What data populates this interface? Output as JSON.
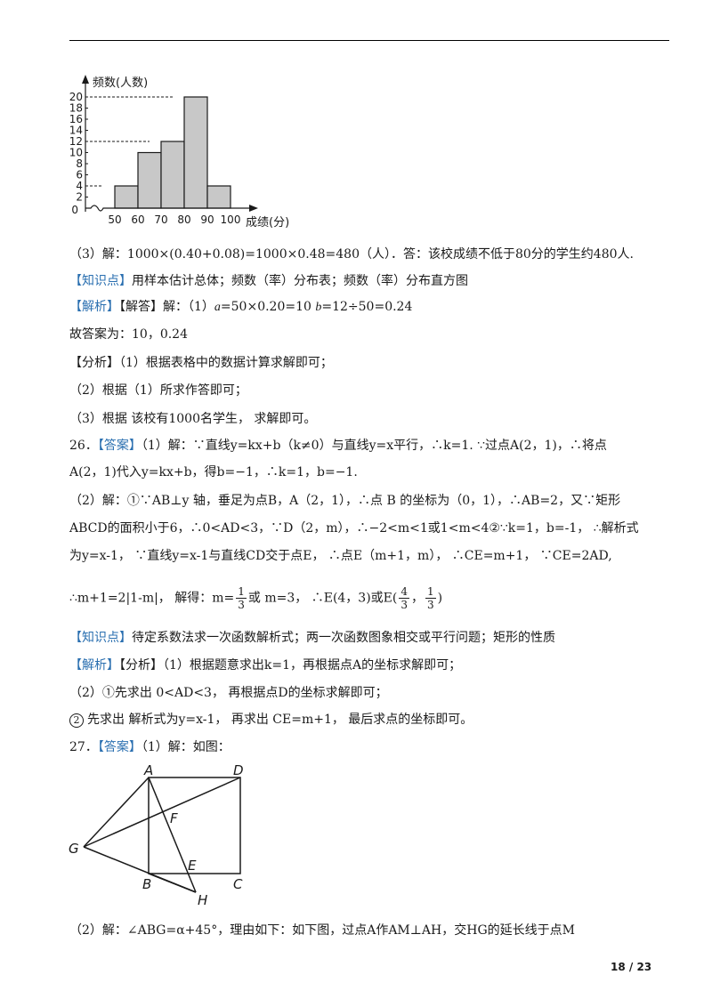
{
  "histogram": {
    "chart_data": {
      "type": "bar",
      "categories": [
        "50-60",
        "60-70",
        "70-80",
        "80-90",
        "90-100"
      ],
      "values": [
        4,
        10,
        12,
        20,
        4
      ],
      "x_ticks": [
        "50",
        "60",
        "70",
        "80",
        "90",
        "100"
      ],
      "y_ticks": [
        "20",
        "18",
        "16",
        "14",
        "12",
        "10",
        "8",
        "6",
        "4",
        "2"
      ],
      "origin": "0",
      "ylabel": "频数(人数)",
      "xlabel": "成绩(分)",
      "ylim": [
        0,
        20
      ],
      "dashed_at": [
        20,
        12,
        4
      ]
    }
  },
  "p25_3": "（3）解：1000×(0.40+0.08)=1000×0.48=480（人）．答：该校成绩不低于80分的学生约480人.",
  "kp25": {
    "tag": "【知识点】",
    "text": "用样本估计总体；频数（率）分布表；频数（率）分布直方图"
  },
  "jx25": {
    "tag": "【解析】",
    "text": "【解答】解：（1）",
    "a": "a",
    "mid": "=50×0.20=10 ",
    "b": "b",
    "end": "=12÷50=0.24"
  },
  "ans25": "故答案为：10，0.24",
  "fx25_1": "【分析】（1）根据表格中的数据计算求解即可；",
  "fx25_2": "（2）根据（1）所求作答即可；",
  "fx25_3": "（3）根据 该校有1000名学生， 求解即可。",
  "q26_l1": {
    "num": "26．",
    "tag": "【答案】",
    "text": "（1）解：∵直线y=kx+b（k≠0）与直线y=x平行，∴k=1. ∵过点A(2，1)，∴将点"
  },
  "q26_l2": "A(2，1)代入y=kx+b，得b=−1，∴k=1，b=−1.",
  "q26_l3": "（2）解：①∵AB⊥y 轴，垂足为点B，A（2，1），∴点 B 的坐标为（0，1），∴AB=2，又∵矩形",
  "q26_l4": "ABCD的面积小于6，∴0<AD<3，∵D（2，m），∴−2<m<1或1<m<4②∵k=1，b=-1， ∴解析式",
  "q26_l5": "为y=x-1， ∵直线y=x-1与直线CD交于点E， ∴点E（m+1，m）， ∴CE=m+1， ∵CE=2AD,",
  "q26_l6": {
    "pre": "∴m+1=2|1-m|， 解得：m=",
    "f1n": "1",
    "f1d": "3",
    "mid": "或 m=3， ∴E(4，3)或E(",
    "f2n": "4",
    "f2d": "3",
    "sep": "，",
    "f3n": "1",
    "f3d": "3",
    "end": ")"
  },
  "kp26": {
    "tag": "【知识点】",
    "text": "待定系数法求一次函数解析式；两一次函数图象相交或平行问题；矩形的性质"
  },
  "jx26": {
    "tag": "【解析】",
    "text": "【分析】（1）根据题意求出k=1，再根据点A的坐标求解即可；"
  },
  "fx26_2": "（2）①先求出 0<AD<3， 再根据点D的坐标求解即可；",
  "fx26_3": {
    "mark": "2",
    "text": "先求出 解析式为y=x-1， 再求出 CE=m+1， 最后求点的坐标即可。"
  },
  "q27": {
    "num": "27．",
    "tag": "【答案】",
    "text": "（1）解：如图："
  },
  "geom_labels": {
    "A": "A",
    "D": "D",
    "F": "F",
    "G": "G",
    "E": "E",
    "B": "B",
    "C": "C",
    "H": "H"
  },
  "q27_2": "（2）解：∠ABG=α+45°，理由如下：如下图，过点A作AM⊥AH，交HG的延长线于点M",
  "page": "18 / 23"
}
